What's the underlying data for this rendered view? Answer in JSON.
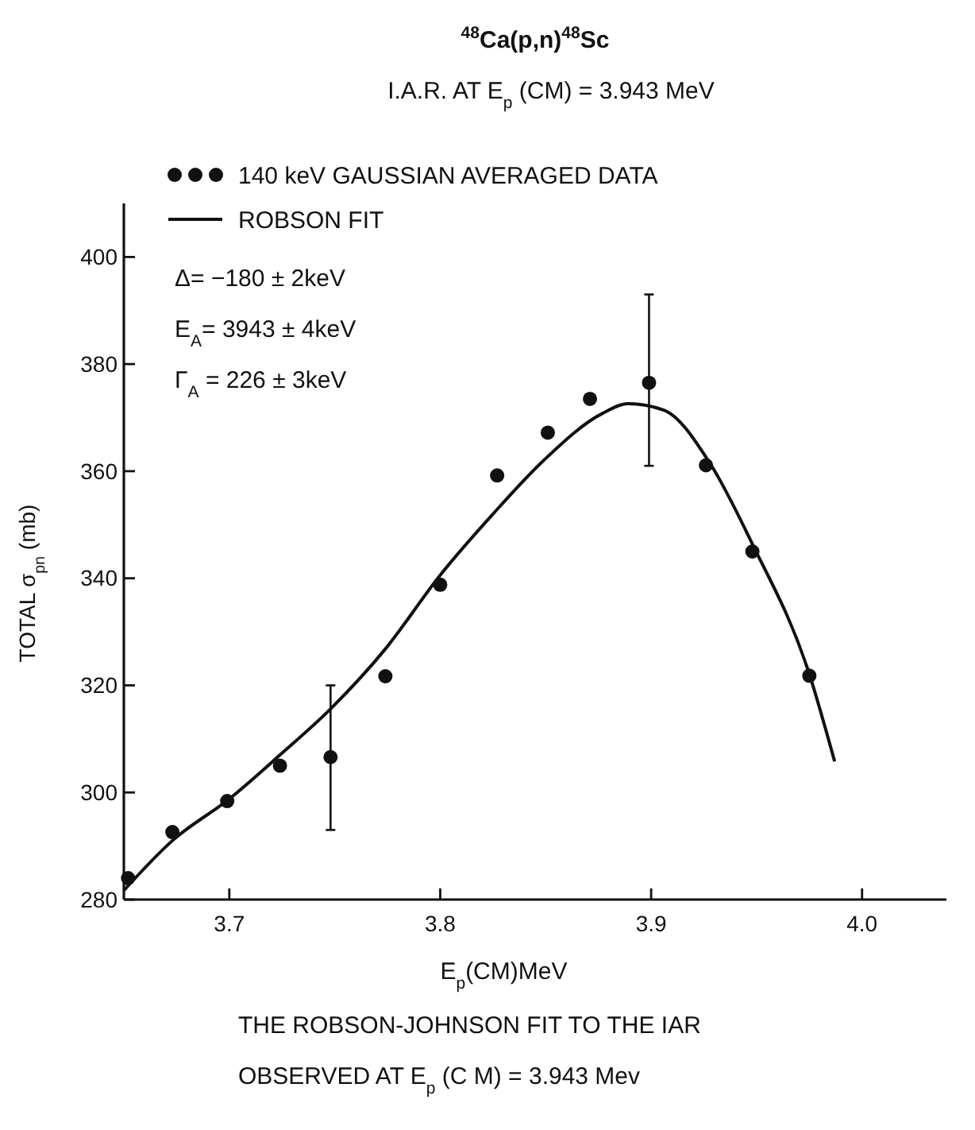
{
  "chart_data": {
    "type": "scatter",
    "title": "$^{48}$Ca(p,n)$^{48}$Sc",
    "subtitle": "I.A.R. AT E$_{p}$ (CM) = 3.943 MeV",
    "xlabel": "E$_{p}$(CM)MeV",
    "ylabel": "TOTAL σ$_{pn}$ (mb)",
    "xlim": [
      3.65,
      4.04
    ],
    "ylim": [
      280,
      410
    ],
    "xticks": [
      3.7,
      3.8,
      3.9,
      {
        "value": 4,
        "label": "4.0"
      }
    ],
    "yticks": [
      280,
      300,
      320,
      340,
      360,
      380,
      400
    ],
    "grid": false,
    "legend": "top left",
    "series": [
      {
        "name": "140 keV GAUSSIAN AVERAGED DATA",
        "marker": "circle",
        "color": "#111111",
        "x": [
          3.652,
          3.673,
          3.699,
          3.724,
          3.748,
          3.774,
          3.8,
          3.827,
          3.851,
          3.871,
          3.899,
          3.926,
          3.948,
          3.975
        ],
        "values": [
          284,
          292.6,
          298.4,
          305,
          306.6,
          321.7,
          338.8,
          359.2,
          367.2,
          373.5,
          376.5,
          361.1,
          345,
          321.8
        ],
        "errors": [
          null,
          null,
          null,
          null,
          [
            293,
            320
          ],
          null,
          null,
          null,
          null,
          null,
          [
            361,
            393
          ],
          null,
          null,
          null
        ]
      },
      {
        "name": "ROBSON FIT",
        "type": "line",
        "marker": "none",
        "line_style": "solid",
        "color": "#111111",
        "x": [
          3.65,
          3.673,
          3.7,
          3.724,
          3.748,
          3.774,
          3.8,
          3.825,
          3.849,
          3.877,
          3.889,
          3.906,
          3.928,
          3.948,
          3.975,
          3.987
        ],
        "values": [
          281.7,
          291,
          298.8,
          307,
          315.6,
          326.8,
          340.6,
          352,
          362,
          370.8,
          372.6,
          371.4,
          361.4,
          346.4,
          322.1,
          305.8
        ]
      }
    ],
    "annotations": [
      "Δ= −180 ± 2keV",
      "E$_{A}$= 3943 ± 4keV",
      "Γ$_{A}$ = 226 ± 3keV",
      "THE ROBSON-JOHNSON FIT TO THE IAR",
      "OBSERVED AT E$_{p}$ (C M) = 3.943 Mev"
    ]
  }
}
